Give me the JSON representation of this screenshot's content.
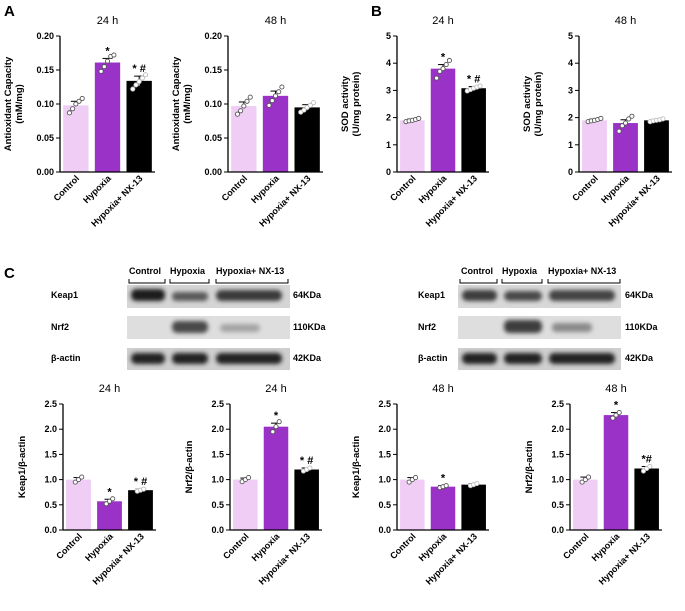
{
  "panels": {
    "a": "A",
    "b": "B",
    "c": "C"
  },
  "kda": [
    "64KDa",
    "110KDa",
    "42KDa"
  ],
  "colors": [
    "#efcdf5",
    "#9b32c8",
    "#000000"
  ],
  "blots": [
    {
      "lanes": [
        "Control",
        "Hypoxia",
        "Hypoxia+ NX-13"
      ],
      "proteins": [
        "Keap1",
        "Nrf2",
        "β-actin"
      ]
    },
    {
      "lanes": [
        "Control",
        "Hypoxia",
        "Hypoxia+ NX-13"
      ],
      "proteins": [
        "Keap1",
        "Nrf2",
        "β-actin"
      ]
    }
  ],
  "chart_data": [
    {
      "type": "bar",
      "title": "24 h",
      "ylabel": [
        "Antioxidant Capacity",
        "(mM/mg)"
      ],
      "categories": [
        "Control",
        "Hypoxia",
        "Hypoxia+ NX-13"
      ],
      "values": [
        0.098,
        0.161,
        0.134
      ],
      "errors": [
        0.006,
        0.006,
        0.007
      ],
      "annotations": [
        "",
        "*",
        "* #"
      ],
      "ylim": [
        0,
        0.2
      ],
      "yticks": [
        "0.00",
        "0.05",
        "0.10",
        "0.15",
        "0.20"
      ],
      "points": [
        [
          0.087,
          0.093,
          0.1,
          0.104,
          0.108
        ],
        [
          0.148,
          0.155,
          0.163,
          0.17,
          0.172
        ],
        [
          0.122,
          0.128,
          0.133,
          0.138,
          0.143
        ]
      ]
    },
    {
      "type": "bar",
      "title": "48 h",
      "ylabel": [
        "Antioxidant Capacity",
        "(mM/mg)"
      ],
      "categories": [
        "Control",
        "Hypoxia",
        "Hypoxia+ NX-13"
      ],
      "values": [
        0.097,
        0.112,
        0.095
      ],
      "errors": [
        0.006,
        0.007,
        0.004
      ],
      "annotations": [
        "",
        "",
        ""
      ],
      "ylim": [
        0,
        0.2
      ],
      "yticks": [
        "0.00",
        "0.05",
        "0.10",
        "0.15",
        "0.20"
      ],
      "points": [
        [
          0.085,
          0.09,
          0.097,
          0.104,
          0.11
        ],
        [
          0.098,
          0.105,
          0.112,
          0.118,
          0.125
        ],
        [
          0.088,
          0.091,
          0.095,
          0.098,
          0.102
        ]
      ]
    },
    {
      "type": "bar",
      "title": "24 h",
      "ylabel": [
        "SOD activity",
        "(U/mg protein)"
      ],
      "categories": [
        "Control",
        "Hypoxia",
        "Hypoxia+ NX-13"
      ],
      "values": [
        1.9,
        3.8,
        3.08
      ],
      "errors": [
        0.05,
        0.15,
        0.06
      ],
      "annotations": [
        "",
        "*",
        "* #"
      ],
      "ylim": [
        0,
        5
      ],
      "yticks": [
        "0",
        "1",
        "2",
        "3",
        "4",
        "5"
      ],
      "points": [
        [
          1.85,
          1.88,
          1.9,
          1.93,
          1.97
        ],
        [
          3.45,
          3.7,
          3.8,
          3.95,
          4.1
        ],
        [
          2.98,
          3.03,
          3.08,
          3.12,
          3.16
        ]
      ]
    },
    {
      "type": "bar",
      "title": "48 h",
      "ylabel": [
        "SOD activity",
        "(U/mg protein)"
      ],
      "categories": [
        "Control",
        "Hypoxia",
        "Hypoxia+ NX-13"
      ],
      "values": [
        1.9,
        1.8,
        1.9
      ],
      "errors": [
        0.05,
        0.12,
        0.03
      ],
      "annotations": [
        "",
        "",
        ""
      ],
      "ylim": [
        0,
        5
      ],
      "yticks": [
        "0",
        "1",
        "2",
        "3",
        "4",
        "5"
      ],
      "points": [
        [
          1.85,
          1.88,
          1.9,
          1.93,
          1.97
        ],
        [
          1.5,
          1.7,
          1.8,
          1.95,
          2.05
        ],
        [
          1.85,
          1.88,
          1.9,
          1.92,
          1.95
        ]
      ]
    },
    {
      "type": "bar",
      "title": "24 h",
      "ylabel": [
        "Keap1/β-actin"
      ],
      "categories": [
        "Control",
        "Hypoxia",
        "Hypoxia+ NX-13"
      ],
      "values": [
        1.0,
        0.57,
        0.79
      ],
      "errors": [
        0.04,
        0.04,
        0.02
      ],
      "annotations": [
        "",
        "*",
        "* #"
      ],
      "ylim": [
        0,
        2.5
      ],
      "yticks": [
        "0.0",
        "0.5",
        "1.0",
        "1.5",
        "2.0",
        "2.5"
      ],
      "points": [
        [
          0.95,
          1.0,
          1.05
        ],
        [
          0.52,
          0.57,
          0.62
        ],
        [
          0.77,
          0.79,
          0.81
        ]
      ]
    },
    {
      "type": "bar",
      "title": "24 h",
      "ylabel": [
        "Nrf2/β-actin"
      ],
      "categories": [
        "Control",
        "Hypoxia",
        "Hypoxia+ NX-13"
      ],
      "values": [
        1.0,
        2.05,
        1.2
      ],
      "errors": [
        0.03,
        0.07,
        0.03
      ],
      "annotations": [
        "",
        "*",
        "* #"
      ],
      "ylim": [
        0,
        2.5
      ],
      "yticks": [
        "0.0",
        "0.5",
        "1.0",
        "1.5",
        "2.0",
        "2.5"
      ],
      "points": [
        [
          0.96,
          1.0,
          1.04
        ],
        [
          1.95,
          2.05,
          2.15
        ],
        [
          1.17,
          1.2,
          1.23
        ]
      ]
    },
    {
      "type": "bar",
      "title": "48 h",
      "ylabel": [
        "Keap1/β-actin"
      ],
      "categories": [
        "Control",
        "Hypoxia",
        "Hypoxia+ NX-13"
      ],
      "values": [
        1.0,
        0.86,
        0.9
      ],
      "errors": [
        0.04,
        0.02,
        0.02
      ],
      "annotations": [
        "",
        "*",
        ""
      ],
      "ylim": [
        0,
        2.5
      ],
      "yticks": [
        "0.0",
        "0.5",
        "1.0",
        "1.5",
        "2.0",
        "2.5"
      ],
      "points": [
        [
          0.95,
          1.0,
          1.04
        ],
        [
          0.84,
          0.86,
          0.88
        ],
        [
          0.88,
          0.9,
          0.92
        ]
      ]
    },
    {
      "type": "bar",
      "title": "48 h",
      "ylabel": [
        "Nrf2/β-actin"
      ],
      "categories": [
        "Control",
        "Hypoxia",
        "Hypoxia+ NX-13"
      ],
      "values": [
        1.0,
        2.28,
        1.22
      ],
      "errors": [
        0.05,
        0.05,
        0.04
      ],
      "annotations": [
        "",
        "*",
        "*#"
      ],
      "ylim": [
        0,
        2.5
      ],
      "yticks": [
        "0.0",
        "0.5",
        "1.0",
        "1.5",
        "2.0",
        "2.5"
      ],
      "points": [
        [
          0.95,
          1.0,
          1.05
        ],
        [
          2.22,
          2.28,
          2.33
        ],
        [
          1.17,
          1.22,
          1.26
        ]
      ]
    }
  ]
}
